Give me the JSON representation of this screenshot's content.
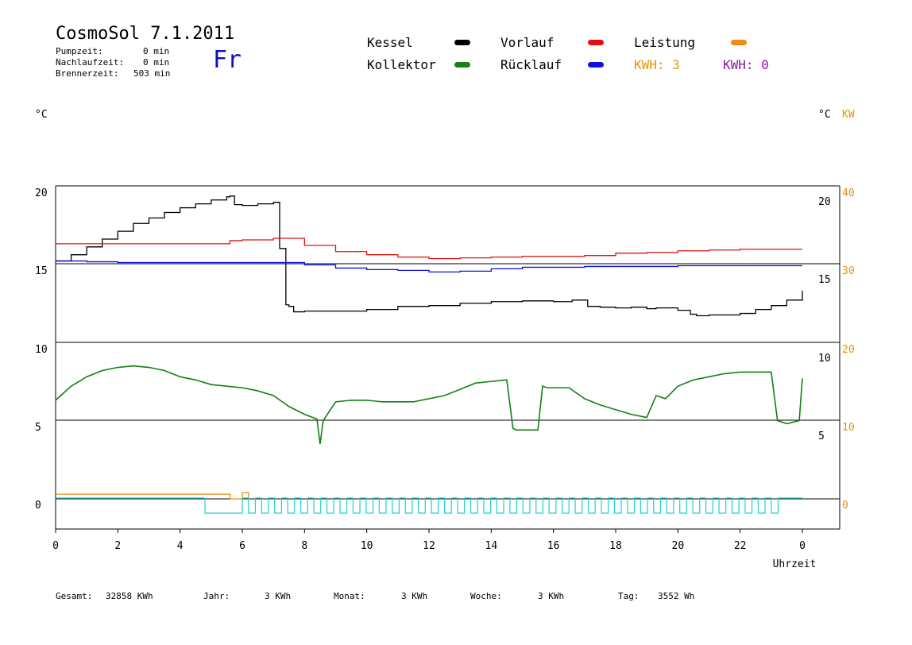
{
  "header": {
    "title": "CosmoSol 7.1.2011",
    "day": "Fr",
    "stats": [
      {
        "label": "Pumpzeit:",
        "value": "0 min"
      },
      {
        "label": "Nachlaufzeit:",
        "value": "0 min"
      },
      {
        "label": "Brennerzeit:",
        "value": "503 min"
      }
    ]
  },
  "legend": {
    "kessel": {
      "label": "Kessel",
      "color": "#000000"
    },
    "kollektor": {
      "label": "Kollektor",
      "color": "#128012"
    },
    "vorlauf": {
      "label": "Vorlauf",
      "color": "#e01010"
    },
    "ruecklauf": {
      "label": "Rücklauf",
      "color": "#1010e0"
    },
    "leistung": {
      "label": "Leistung",
      "color": "#f08a10"
    },
    "kwh1": {
      "label": "KWH:",
      "value": "3",
      "color": "#e8900c"
    },
    "kwh2": {
      "label": "KWH:",
      "value": "0",
      "color": "#8a1a9a"
    }
  },
  "axis_labels": {
    "left_unit": "°C",
    "right_unit": "°C",
    "right_unit2": "KW",
    "x_title": "Uhrzeit"
  },
  "footer": [
    {
      "label": "Gesamt:",
      "value": "32858 KWh"
    },
    {
      "label": "Jahr:",
      "value": "3 KWh"
    },
    {
      "label": "Monat:",
      "value": "3 KWh"
    },
    {
      "label": "Woche:",
      "value": "3 KWh"
    },
    {
      "label": "Tag:",
      "value": "3552 Wh"
    }
  ],
  "chart_data": {
    "type": "line",
    "x_ticks": [
      "0",
      "2",
      "4",
      "6",
      "8",
      "10",
      "12",
      "14",
      "16",
      "18",
      "20",
      "22",
      "0"
    ],
    "xlabel": "Uhrzeit",
    "upper_panel": {
      "left_ticks": [
        "20",
        "15"
      ],
      "right_ticks": [
        "20",
        "15"
      ],
      "right_kw_ticks": [
        "40",
        "30"
      ],
      "ylim": [
        10,
        20
      ],
      "series": [
        {
          "name": "Kessel",
          "color": "#000000",
          "x": [
            0,
            0.5,
            1,
            1.5,
            2,
            2.5,
            3,
            3.5,
            4,
            4.5,
            5,
            5.5,
            5.6,
            5.75,
            6,
            6.5,
            7,
            7.2,
            7.4,
            7.5,
            7.65,
            8,
            9,
            10,
            11,
            12,
            13,
            14,
            15,
            16,
            16.6,
            17,
            17.1,
            17.5,
            18,
            18.5,
            19,
            19.3,
            20,
            20.4,
            20.6,
            21,
            22,
            22.5,
            23,
            23.5,
            24
          ],
          "y": [
            15.2,
            15.6,
            16.1,
            16.6,
            17.1,
            17.6,
            17.95,
            18.3,
            18.6,
            18.85,
            19.1,
            19.3,
            19.35,
            18.8,
            18.75,
            18.85,
            18.95,
            16,
            12.4,
            12.3,
            11.95,
            12,
            12,
            12.1,
            12.3,
            12.35,
            12.5,
            12.6,
            12.65,
            12.6,
            12.7,
            12.7,
            12.3,
            12.25,
            12.2,
            12.25,
            12.15,
            12.2,
            12.05,
            11.8,
            11.7,
            11.75,
            11.85,
            12.1,
            12.35,
            12.7,
            13.3
          ]
        },
        {
          "name": "Vorlauf",
          "color": "#e01010",
          "x": [
            0,
            1,
            2,
            3,
            4,
            5,
            5.6,
            6,
            7,
            7.5,
            8,
            9,
            10,
            11,
            12,
            13,
            14,
            15,
            16,
            17,
            18,
            19,
            20,
            21,
            22,
            23,
            24
          ],
          "y": [
            16.3,
            16.3,
            16.3,
            16.3,
            16.3,
            16.3,
            16.5,
            16.55,
            16.65,
            16.65,
            16.2,
            15.8,
            15.6,
            15.45,
            15.35,
            15.4,
            15.45,
            15.5,
            15.5,
            15.55,
            15.7,
            15.75,
            15.85,
            15.9,
            15.95,
            15.95,
            15.95
          ]
        },
        {
          "name": "Rücklauf",
          "color": "#1010e0",
          "x": [
            0,
            1,
            2,
            3,
            4,
            5,
            6,
            7,
            8,
            9,
            10,
            11,
            12,
            13,
            14,
            15,
            16,
            17,
            18,
            19,
            20,
            21,
            22,
            23,
            24
          ],
          "y": [
            15.2,
            15.15,
            15.1,
            15.1,
            15.1,
            15.1,
            15.1,
            15.1,
            14.95,
            14.75,
            14.65,
            14.6,
            14.5,
            14.55,
            14.7,
            14.8,
            14.8,
            14.85,
            14.85,
            14.85,
            14.9,
            14.9,
            14.9,
            14.9,
            14.9
          ]
        }
      ]
    },
    "lower_panel": {
      "left_ticks": [
        "10",
        "5",
        "0"
      ],
      "right_ticks": [
        "10",
        "5"
      ],
      "right_kw_ticks": [
        "20",
        "10",
        "0"
      ],
      "ylim": [
        0,
        10
      ],
      "series": [
        {
          "name": "Kollektor",
          "color": "#128012",
          "x": [
            0,
            0.5,
            1,
            1.5,
            2,
            2.5,
            3,
            3.5,
            4,
            4.5,
            5,
            5.5,
            6,
            6.5,
            7,
            7.5,
            8,
            8.4,
            8.5,
            8.6,
            9,
            9.5,
            10,
            10.5,
            11,
            11.5,
            12,
            12.5,
            13,
            13.5,
            14,
            14.5,
            14.7,
            14.8,
            15.5,
            15.65,
            15.8,
            16.5,
            17,
            17.5,
            18,
            18.5,
            19,
            19.3,
            19.6,
            20,
            20.5,
            21,
            21.5,
            22,
            22.5,
            23,
            23.2,
            23.5,
            23.9,
            24
          ],
          "y": [
            6.3,
            7.2,
            7.8,
            8.2,
            8.4,
            8.5,
            8.4,
            8.2,
            7.8,
            7.6,
            7.3,
            7.2,
            7.1,
            6.9,
            6.6,
            5.9,
            5.4,
            5.1,
            3.5,
            5.0,
            6.2,
            6.3,
            6.3,
            6.2,
            6.2,
            6.2,
            6.4,
            6.6,
            7.0,
            7.4,
            7.5,
            7.6,
            4.5,
            4.4,
            4.4,
            7.2,
            7.1,
            7.1,
            6.4,
            6.0,
            5.7,
            5.4,
            5.2,
            6.6,
            6.4,
            7.2,
            7.6,
            7.8,
            8.0,
            8.1,
            8.1,
            8.1,
            5.0,
            4.8,
            5.0,
            7.7
          ]
        },
        {
          "name": "Leistung",
          "color": "#f08a10",
          "x": [
            0,
            5.6,
            5.61,
            6,
            6.2
          ],
          "y": [
            0.3,
            0.3,
            0,
            0.4,
            0
          ]
        }
      ]
    }
  }
}
